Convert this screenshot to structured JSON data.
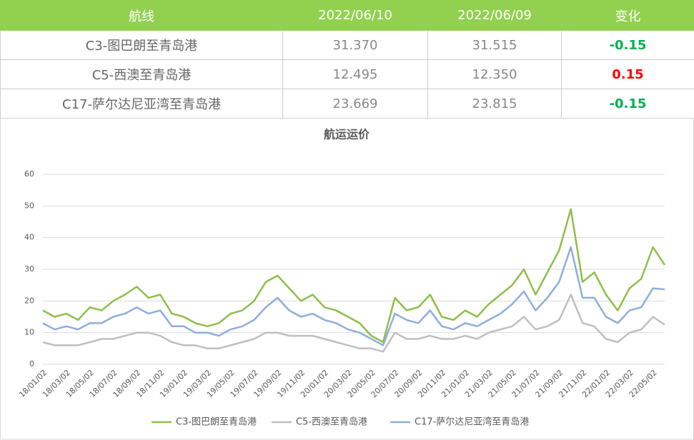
{
  "table": {
    "header": [
      "航线",
      "2022/06/10",
      "2022/06/09",
      "变化"
    ],
    "rows": [
      [
        "C3-图巴朗至青岛港",
        "31.370",
        "31.515",
        "-0.15"
      ],
      [
        "C5-西澳至青岛港",
        "12.495",
        "12.350",
        "0.15"
      ],
      [
        "C17-萨尔达尼亚湾至青岛港",
        "23.669",
        "23.815",
        "-0.15"
      ]
    ]
  },
  "chart_data": {
    "type": "line",
    "title": "航运运价",
    "categories": [
      "18/01/02",
      null,
      "18/03/02",
      null,
      "18/05/02",
      null,
      "18/07/02",
      null,
      "18/09/02",
      null,
      "18/11/02",
      null,
      "19/01/02",
      null,
      "19/03/02",
      null,
      "19/05/02",
      null,
      "19/07/02",
      null,
      "19/09/02",
      null,
      "19/11/02",
      null,
      "20/01/02",
      null,
      "20/03/02",
      null,
      "20/05/02",
      null,
      "20/07/02",
      null,
      "20/09/02",
      null,
      "20/11/02",
      null,
      "21/01/02",
      null,
      "21/03/02",
      null,
      "21/05/02",
      null,
      "21/07/02",
      null,
      "21/09/02",
      null,
      "21/11/02",
      null,
      "22/01/02",
      null,
      "22/03/02",
      null,
      "22/05/02",
      null
    ],
    "series": [
      {
        "name": "C3-图巴朗至青岛港",
        "color": "#8fbe4a",
        "values": [
          17,
          15,
          16,
          14,
          18,
          17,
          20,
          22,
          24.5,
          21,
          22,
          16,
          15,
          13,
          12,
          13,
          16,
          17,
          20,
          26,
          28,
          24,
          20,
          22,
          18,
          17,
          15,
          13,
          9,
          7,
          21,
          17,
          18,
          22,
          15,
          14,
          17,
          15,
          19,
          22,
          25,
          30,
          22,
          29,
          36,
          49,
          26,
          29,
          22,
          17,
          24,
          27,
          37,
          31.37
        ]
      },
      {
        "name": "C5-西澳至青岛港",
        "color": "#bfbfbf",
        "values": [
          7,
          6,
          6,
          6,
          7,
          8,
          8,
          9,
          10,
          10,
          9,
          7,
          6,
          6,
          5,
          5,
          6,
          7,
          8,
          10,
          10,
          9,
          9,
          9,
          8,
          7,
          6,
          5,
          5,
          4,
          10,
          8,
          8,
          9,
          8,
          8,
          9,
          8,
          10,
          11,
          12,
          15,
          11,
          12,
          14,
          22,
          13,
          12,
          8,
          7,
          10,
          11,
          15,
          12.495
        ]
      },
      {
        "name": "C17-萨尔达尼亚湾至青岛港",
        "color": "#8eaedc",
        "values": [
          13,
          11,
          12,
          11,
          13,
          13,
          15,
          16,
          18,
          16,
          17,
          12,
          12,
          10,
          10,
          9,
          11,
          12,
          14,
          18,
          21,
          17,
          15,
          16,
          14,
          13,
          11,
          10,
          8,
          6,
          16,
          14,
          13,
          17,
          12,
          11,
          13,
          12,
          14,
          16,
          19,
          23,
          17,
          21,
          26,
          37,
          21,
          21,
          15,
          13,
          17,
          18,
          24,
          23.669
        ]
      }
    ],
    "ylim": [
      0,
      60
    ],
    "yticks": [
      0,
      10,
      20,
      30,
      40,
      50,
      60
    ],
    "grid": true
  }
}
